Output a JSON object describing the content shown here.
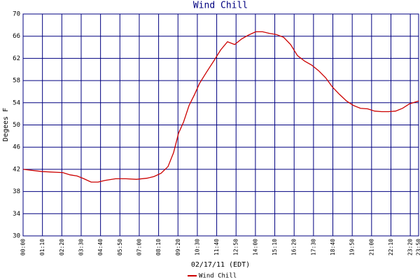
{
  "chart_data": {
    "type": "line",
    "title": "Wind Chill",
    "x_label": "02/17/11 (EDT)",
    "y_label": "Degees F",
    "x": [
      0,
      68,
      144,
      170,
      195,
      220,
      246,
      271,
      296,
      334,
      372,
      410,
      448,
      473,
      499,
      524,
      544,
      562,
      580,
      600,
      620,
      638,
      663,
      689,
      714,
      739,
      765,
      790,
      815,
      841,
      866,
      891,
      916,
      942,
      967,
      992,
      1018,
      1043,
      1068,
      1094,
      1119,
      1144,
      1170,
      1195,
      1220,
      1246,
      1271,
      1296,
      1322,
      1347,
      1372,
      1397,
      1430
    ],
    "series": [
      {
        "name": "Wind Chill",
        "color": "#cc0000",
        "values": [
          42,
          41.6,
          41.4,
          41,
          40.8,
          40.3,
          39.7,
          39.7,
          40,
          40.3,
          40.3,
          40.2,
          40.4,
          40.7,
          41.3,
          42.5,
          45,
          48.5,
          50.5,
          53.5,
          55.5,
          57.5,
          59.5,
          61.5,
          63.5,
          65,
          64.5,
          65.5,
          66.2,
          66.8,
          66.8,
          66.5,
          66.3,
          65.8,
          64.5,
          62.5,
          61.5,
          60.8,
          59.8,
          58.5,
          56.8,
          55.5,
          54.3,
          53.5,
          53,
          52.9,
          52.5,
          52.4,
          52.4,
          52.5,
          53,
          53.8,
          54.3
        ]
      }
    ],
    "xlim": [
      0,
      1430
    ],
    "xticks": [
      {
        "value": 0,
        "label": "00:00"
      },
      {
        "value": 70,
        "label": "01:10"
      },
      {
        "value": 140,
        "label": "02:20"
      },
      {
        "value": 210,
        "label": "03:30"
      },
      {
        "value": 280,
        "label": "04:40"
      },
      {
        "value": 350,
        "label": "05:50"
      },
      {
        "value": 420,
        "label": "07:00"
      },
      {
        "value": 490,
        "label": "08:10"
      },
      {
        "value": 560,
        "label": "09:20"
      },
      {
        "value": 630,
        "label": "10:30"
      },
      {
        "value": 700,
        "label": "11:40"
      },
      {
        "value": 770,
        "label": "12:50"
      },
      {
        "value": 840,
        "label": "14:00"
      },
      {
        "value": 910,
        "label": "15:10"
      },
      {
        "value": 980,
        "label": "16:20"
      },
      {
        "value": 1050,
        "label": "17:30"
      },
      {
        "value": 1120,
        "label": "18:40"
      },
      {
        "value": 1190,
        "label": "19:50"
      },
      {
        "value": 1260,
        "label": "21:00"
      },
      {
        "value": 1330,
        "label": "22:10"
      },
      {
        "value": 1400,
        "label": "23:20"
      },
      {
        "value": 1430,
        "label": "23:50"
      }
    ],
    "ylim": [
      30,
      70
    ],
    "yticks": [
      30,
      34,
      38,
      42,
      46,
      50,
      54,
      58,
      62,
      66,
      70
    ],
    "grid": true,
    "grid_color": "#000080"
  }
}
